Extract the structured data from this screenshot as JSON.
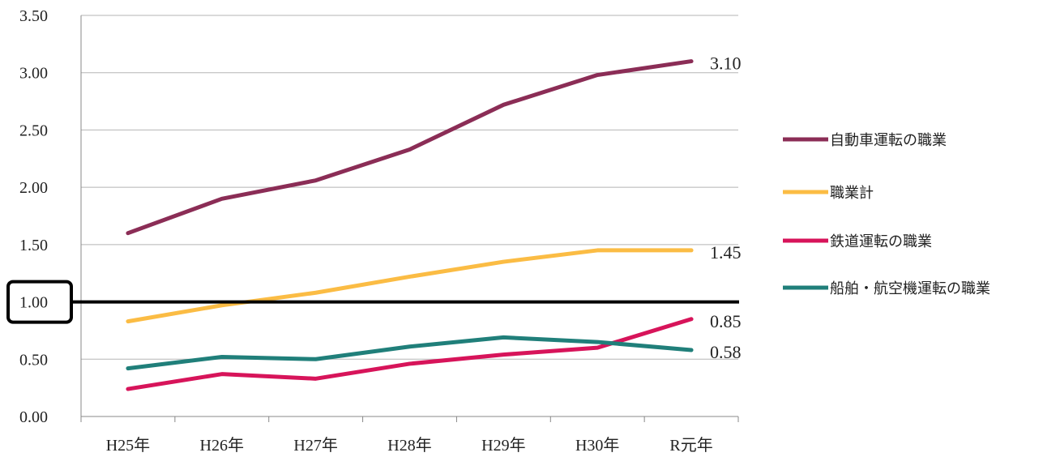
{
  "chart_data": {
    "type": "line",
    "categories": [
      "H25年",
      "H26年",
      "H27年",
      "H28年",
      "H29年",
      "H30年",
      "R元年"
    ],
    "ylim": [
      0,
      3.5
    ],
    "yticks": [
      "0.00",
      "0.50",
      "1.00",
      "1.50",
      "2.00",
      "2.50",
      "3.00",
      "3.50"
    ],
    "grid": true,
    "legend_position": "right",
    "reference_line": {
      "value": 1.0,
      "label": "1.00",
      "highlighted": true,
      "color": "#000000"
    },
    "series": [
      {
        "name": "自動車運転の職業",
        "color": "#8B2D56",
        "values": [
          1.6,
          1.9,
          2.06,
          2.33,
          2.72,
          2.98,
          3.1
        ],
        "end_label": "3.10"
      },
      {
        "name": "職業計",
        "color": "#FBBC44",
        "values": [
          0.83,
          0.97,
          1.08,
          1.22,
          1.35,
          1.45,
          1.45
        ],
        "end_label": "1.45"
      },
      {
        "name": "鉄道運転の職業",
        "color": "#D7145A",
        "values": [
          0.24,
          0.37,
          0.33,
          0.46,
          0.54,
          0.6,
          0.85
        ],
        "end_label": "0.85"
      },
      {
        "name": "船舶・航空機運転の職業",
        "color": "#207F7A",
        "values": [
          0.42,
          0.52,
          0.5,
          0.61,
          0.69,
          0.65,
          0.58
        ],
        "end_label": "0.58"
      }
    ]
  }
}
